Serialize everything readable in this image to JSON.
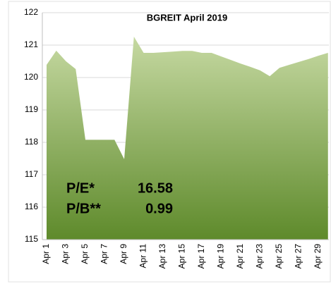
{
  "chart_data": {
    "type": "area",
    "title": "BGREIT April 2019",
    "categories": [
      "Apr 1",
      null,
      "Apr 3",
      null,
      "Apr 5",
      null,
      "Apr 7",
      null,
      "Apr 9",
      null,
      "Apr 11",
      null,
      "Apr 13",
      null,
      "Apr 15",
      null,
      "Apr 17",
      null,
      "Apr 19",
      null,
      "Apr 21",
      null,
      "Apr 23",
      null,
      "Apr 25",
      null,
      "Apr 27",
      null,
      "Apr 29",
      null
    ],
    "values": [
      120.39,
      120.83,
      120.5,
      120.26,
      118.08,
      118.08,
      118.08,
      118.08,
      117.48,
      121.26,
      120.76,
      120.76,
      120.78,
      120.8,
      120.82,
      120.82,
      120.76,
      120.76,
      120.65,
      120.54,
      120.43,
      120.33,
      120.22,
      120.04,
      120.3,
      120.39,
      120.48,
      120.57,
      120.67,
      120.76
    ],
    "colors": [
      "#c6d9a2",
      "#5e8a2b"
    ],
    "ylim": [
      115,
      122
    ],
    "yticks": [
      115,
      116,
      117,
      118,
      119,
      120,
      121,
      122
    ],
    "grid": true,
    "annotations": [
      {
        "label": "P/E*",
        "value": "16.58"
      },
      {
        "label": "P/B**",
        "value": "0.99"
      }
    ]
  }
}
